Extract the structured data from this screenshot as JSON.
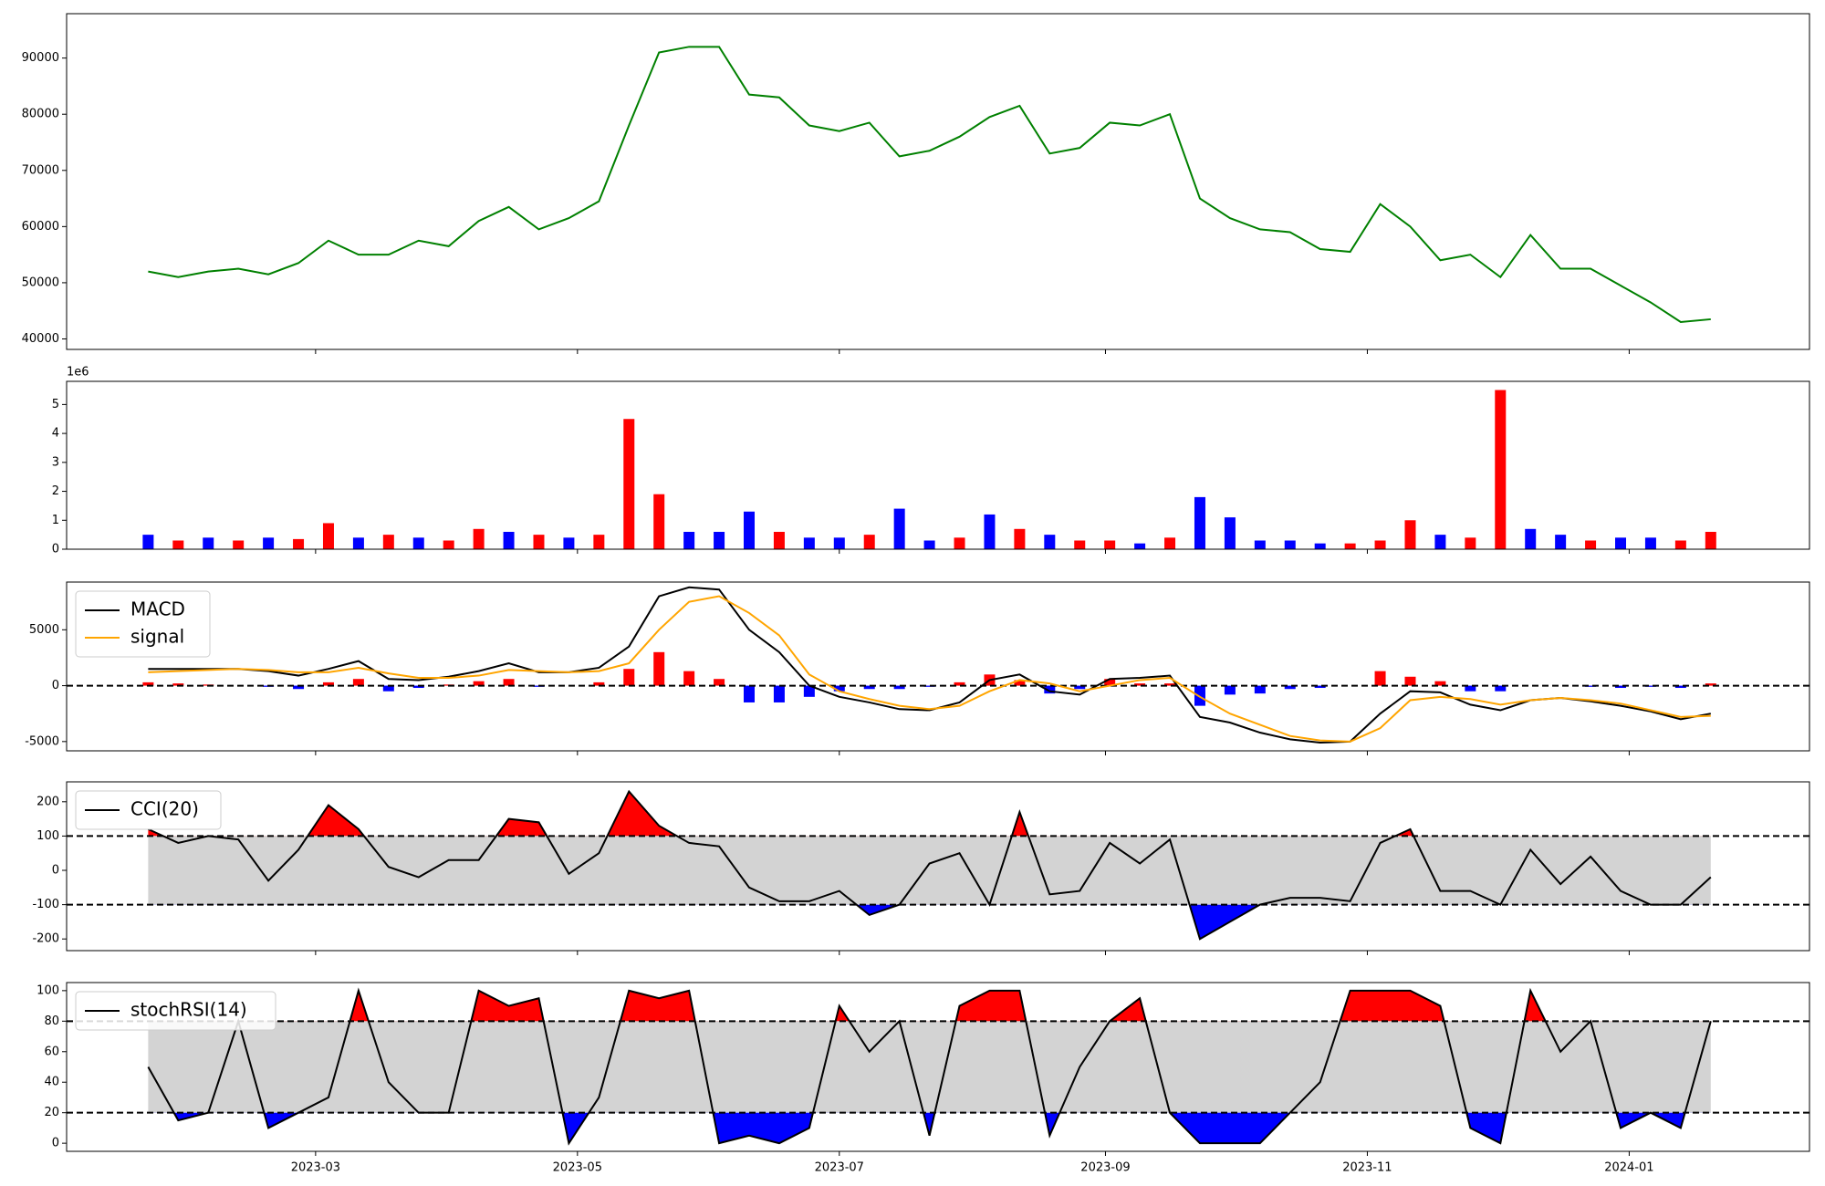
{
  "chart_data": [
    {
      "type": "line",
      "series": [
        {
          "name": null,
          "color": "#008000",
          "values": [
            52000,
            51000,
            52000,
            52500,
            51500,
            53500,
            57500,
            55000,
            55000,
            57500,
            56500,
            61000,
            63500,
            59500,
            61500,
            64500,
            78000,
            91000,
            92000,
            92000,
            83500,
            83000,
            78000,
            77000,
            78500,
            72500,
            73500,
            76000,
            79500,
            81500,
            73000,
            74000,
            78500,
            78000,
            80000,
            65000,
            61500,
            59500,
            59000,
            56000,
            55500,
            64000,
            60000,
            54000,
            55000,
            51000,
            58500,
            52500,
            52500,
            49500,
            46500,
            43000,
            43500
          ]
        }
      ],
      "x": [
        "2023-01-21",
        "2023-01-28",
        "2023-02-04",
        "2023-02-11",
        "2023-02-18",
        "2023-02-25",
        "2023-03-04",
        "2023-03-11",
        "2023-03-18",
        "2023-03-25",
        "2023-04-01",
        "2023-04-08",
        "2023-04-15",
        "2023-04-22",
        "2023-04-29",
        "2023-05-06",
        "2023-05-13",
        "2023-05-20",
        "2023-05-27",
        "2023-06-03",
        "2023-06-10",
        "2023-06-17",
        "2023-06-24",
        "2023-07-01",
        "2023-07-08",
        "2023-07-15",
        "2023-07-22",
        "2023-07-29",
        "2023-08-05",
        "2023-08-12",
        "2023-08-19",
        "2023-08-26",
        "2023-09-02",
        "2023-09-09",
        "2023-09-16",
        "2023-09-23",
        "2023-09-30",
        "2023-10-07",
        "2023-10-14",
        "2023-10-21",
        "2023-10-28",
        "2023-11-04",
        "2023-11-11",
        "2023-11-18",
        "2023-11-25",
        "2023-12-02",
        "2023-12-09",
        "2023-12-16",
        "2023-12-23",
        "2023-12-30",
        "2024-01-06",
        "2024-01-13",
        "2024-01-20"
      ],
      "xlim": [
        "2023-01-02",
        "2024-02-12"
      ],
      "ylim": [
        38130,
        97900
      ],
      "yticks": [
        40000,
        50000,
        60000,
        70000,
        80000,
        90000
      ]
    },
    {
      "type": "bar",
      "offset_label": "1e6",
      "values": [
        0.5,
        0.3,
        0.4,
        0.3,
        0.4,
        0.35,
        0.9,
        0.4,
        0.5,
        0.4,
        0.3,
        0.7,
        0.6,
        0.5,
        0.4,
        0.5,
        4.5,
        1.9,
        0.6,
        0.6,
        1.3,
        0.6,
        0.4,
        0.4,
        0.5,
        1.4,
        0.3,
        0.4,
        1.2,
        0.7,
        0.5,
        0.3,
        0.3,
        0.2,
        0.4,
        1.8,
        1.1,
        0.3,
        0.3,
        0.2,
        0.2,
        0.3,
        1.0,
        0.5,
        0.4,
        5.5,
        0.7,
        0.5,
        0.3,
        0.4,
        0.4,
        0.3,
        0.6
      ],
      "colors": [
        "#0000ff",
        "#ff0000",
        "#0000ff",
        "#ff0000",
        "#0000ff",
        "#ff0000",
        "#ff0000",
        "#0000ff",
        "#ff0000",
        "#0000ff",
        "#ff0000",
        "#ff0000",
        "#0000ff",
        "#ff0000",
        "#0000ff",
        "#ff0000",
        "#ff0000",
        "#ff0000",
        "#0000ff",
        "#0000ff",
        "#0000ff",
        "#ff0000",
        "#0000ff",
        "#0000ff",
        "#ff0000",
        "#0000ff",
        "#0000ff",
        "#ff0000",
        "#0000ff",
        "#ff0000",
        "#0000ff",
        "#ff0000",
        "#ff0000",
        "#0000ff",
        "#ff0000",
        "#0000ff",
        "#0000ff",
        "#0000ff",
        "#0000ff",
        "#0000ff",
        "#ff0000",
        "#ff0000",
        "#ff0000",
        "#0000ff",
        "#ff0000",
        "#ff0000",
        "#0000ff",
        "#0000ff",
        "#ff0000",
        "#0000ff",
        "#0000ff",
        "#ff0000",
        "#ff0000"
      ],
      "x": [
        "2023-01-21",
        "2023-01-28",
        "2023-02-04",
        "2023-02-11",
        "2023-02-18",
        "2023-02-25",
        "2023-03-04",
        "2023-03-11",
        "2023-03-18",
        "2023-03-25",
        "2023-04-01",
        "2023-04-08",
        "2023-04-15",
        "2023-04-22",
        "2023-04-29",
        "2023-05-06",
        "2023-05-13",
        "2023-05-20",
        "2023-05-27",
        "2023-06-03",
        "2023-06-10",
        "2023-06-17",
        "2023-06-24",
        "2023-07-01",
        "2023-07-08",
        "2023-07-15",
        "2023-07-22",
        "2023-07-29",
        "2023-08-05",
        "2023-08-12",
        "2023-08-19",
        "2023-08-26",
        "2023-09-02",
        "2023-09-09",
        "2023-09-16",
        "2023-09-23",
        "2023-09-30",
        "2023-10-07",
        "2023-10-14",
        "2023-10-21",
        "2023-10-28",
        "2023-11-04",
        "2023-11-11",
        "2023-11-18",
        "2023-11-25",
        "2023-12-02",
        "2023-12-09",
        "2023-12-16",
        "2023-12-23",
        "2023-12-30",
        "2024-01-06",
        "2024-01-13",
        "2024-01-20"
      ],
      "xlim": [
        "2023-01-02",
        "2024-02-12"
      ],
      "ylim": [
        0,
        5.8
      ],
      "yticks": [
        0,
        1,
        2,
        3,
        4,
        5
      ]
    },
    {
      "type": "line",
      "legend": "upper left",
      "hlines": [
        0
      ],
      "series": [
        {
          "name": "MACD",
          "color": "#000000",
          "values": [
            1500,
            1500,
            1500,
            1500,
            1300,
            900,
            1500,
            2200,
            600,
            500,
            800,
            1300,
            2000,
            1200,
            1200,
            1600,
            3500,
            8000,
            8800,
            8600,
            5000,
            3000,
            0,
            -1000,
            -1500,
            -2100,
            -2200,
            -1500,
            500,
            1000,
            -500,
            -800,
            600,
            700,
            900,
            -2800,
            -3300,
            -4200,
            -4800,
            -5100,
            -5000,
            -2500,
            -500,
            -600,
            -1700,
            -2200,
            -1300,
            -1100,
            -1400,
            -1800,
            -2300,
            -3000,
            -2500
          ]
        },
        {
          "name": "signal",
          "color": "#ffa500",
          "values": [
            1200,
            1300,
            1400,
            1500,
            1400,
            1200,
            1200,
            1600,
            1100,
            700,
            700,
            900,
            1400,
            1300,
            1200,
            1300,
            2000,
            5000,
            7500,
            8000,
            6500,
            4500,
            1000,
            -500,
            -1200,
            -1800,
            -2100,
            -1800,
            -500,
            500,
            200,
            -500,
            0,
            500,
            700,
            -1000,
            -2500,
            -3500,
            -4500,
            -4900,
            -5000,
            -3800,
            -1300,
            -1000,
            -1200,
            -1700,
            -1300,
            -1100,
            -1300,
            -1600,
            -2200,
            -2800,
            -2700
          ]
        }
      ],
      "histogram": {
        "positive_color": "#ff0000",
        "negative_color": "#0000ff",
        "values": [
          300,
          200,
          100,
          0,
          -100,
          -300,
          300,
          600,
          -500,
          -200,
          100,
          400,
          600,
          -100,
          0,
          300,
          1500,
          3000,
          1300,
          600,
          -1500,
          -1500,
          -1000,
          -500,
          -300,
          -300,
          -100,
          300,
          1000,
          500,
          -700,
          -300,
          600,
          200,
          200,
          -1800,
          -800,
          -700,
          -300,
          -200,
          0,
          1300,
          800,
          400,
          -500,
          -500,
          0,
          0,
          -100,
          -200,
          -100,
          -200,
          200
        ]
      },
      "x": [
        "2023-01-21",
        "2023-01-28",
        "2023-02-04",
        "2023-02-11",
        "2023-02-18",
        "2023-02-25",
        "2023-03-04",
        "2023-03-11",
        "2023-03-18",
        "2023-03-25",
        "2023-04-01",
        "2023-04-08",
        "2023-04-15",
        "2023-04-22",
        "2023-04-29",
        "2023-05-06",
        "2023-05-13",
        "2023-05-20",
        "2023-05-27",
        "2023-06-03",
        "2023-06-10",
        "2023-06-17",
        "2023-06-24",
        "2023-07-01",
        "2023-07-08",
        "2023-07-15",
        "2023-07-22",
        "2023-07-29",
        "2023-08-05",
        "2023-08-12",
        "2023-08-19",
        "2023-08-26",
        "2023-09-02",
        "2023-09-09",
        "2023-09-16",
        "2023-09-23",
        "2023-09-30",
        "2023-10-07",
        "2023-10-14",
        "2023-10-21",
        "2023-10-28",
        "2023-11-04",
        "2023-11-11",
        "2023-11-18",
        "2023-11-25",
        "2023-12-02",
        "2023-12-09",
        "2023-12-16",
        "2023-12-23",
        "2023-12-30",
        "2024-01-06",
        "2024-01-13",
        "2024-01-20"
      ],
      "xlim": [
        "2023-01-02",
        "2024-02-12"
      ],
      "ylim": [
        -5830,
        9270
      ],
      "yticks": [
        -5000,
        0,
        5000
      ]
    },
    {
      "type": "line",
      "legend": "upper left",
      "hlines": [
        -100,
        100
      ],
      "band_color": "#d3d3d3",
      "above_color": "#ff0000",
      "below_color": "#0000ff",
      "series": [
        {
          "name": "CCI(20)",
          "color": "#000000",
          "values": [
            120,
            80,
            100,
            90,
            -30,
            60,
            190,
            120,
            10,
            -20,
            30,
            30,
            150,
            140,
            -10,
            50,
            230,
            130,
            80,
            70,
            -50,
            -90,
            -90,
            -60,
            -130,
            -100,
            20,
            50,
            -100,
            170,
            -70,
            -60,
            80,
            20,
            90,
            -200,
            -150,
            -100,
            -80,
            -80,
            -90,
            80,
            120,
            -60,
            -60,
            -100,
            60,
            -40,
            40,
            -60,
            -100,
            -100,
            -20
          ]
        }
      ],
      "x": [
        "2023-01-21",
        "2023-01-28",
        "2023-02-04",
        "2023-02-11",
        "2023-02-18",
        "2023-02-25",
        "2023-03-04",
        "2023-03-11",
        "2023-03-18",
        "2023-03-25",
        "2023-04-01",
        "2023-04-08",
        "2023-04-15",
        "2023-04-22",
        "2023-04-29",
        "2023-05-06",
        "2023-05-13",
        "2023-05-20",
        "2023-05-27",
        "2023-06-03",
        "2023-06-10",
        "2023-06-17",
        "2023-06-24",
        "2023-07-01",
        "2023-07-08",
        "2023-07-15",
        "2023-07-22",
        "2023-07-29",
        "2023-08-05",
        "2023-08-12",
        "2023-08-19",
        "2023-08-26",
        "2023-09-02",
        "2023-09-09",
        "2023-09-16",
        "2023-09-23",
        "2023-09-30",
        "2023-10-07",
        "2023-10-14",
        "2023-10-21",
        "2023-10-28",
        "2023-11-04",
        "2023-11-11",
        "2023-11-18",
        "2023-11-25",
        "2023-12-02",
        "2023-12-09",
        "2023-12-16",
        "2023-12-23",
        "2023-12-30",
        "2024-01-06",
        "2024-01-13",
        "2024-01-20"
      ],
      "xlim": [
        "2023-01-02",
        "2024-02-12"
      ],
      "ylim": [
        -234,
        258
      ],
      "yticks": [
        -200,
        -100,
        0,
        100,
        200
      ]
    },
    {
      "type": "line",
      "legend": "upper left",
      "hlines": [
        20,
        80
      ],
      "band_color": "#d3d3d3",
      "above_color": "#ff0000",
      "below_color": "#0000ff",
      "series": [
        {
          "name": "stochRSI(14)",
          "color": "#000000",
          "values": [
            50,
            15,
            20,
            80,
            10,
            20,
            30,
            100,
            40,
            20,
            20,
            100,
            90,
            95,
            0,
            30,
            100,
            95,
            100,
            0,
            5,
            0,
            10,
            90,
            60,
            80,
            5,
            90,
            100,
            100,
            5,
            50,
            80,
            95,
            20,
            0,
            0,
            0,
            20,
            40,
            100,
            100,
            100,
            90,
            10,
            0,
            100,
            60,
            80,
            10,
            20,
            10,
            80
          ]
        }
      ],
      "x": [
        "2023-01-21",
        "2023-01-28",
        "2023-02-04",
        "2023-02-11",
        "2023-02-18",
        "2023-02-25",
        "2023-03-04",
        "2023-03-11",
        "2023-03-18",
        "2023-03-25",
        "2023-04-01",
        "2023-04-08",
        "2023-04-15",
        "2023-04-22",
        "2023-04-29",
        "2023-05-06",
        "2023-05-13",
        "2023-05-20",
        "2023-05-27",
        "2023-06-03",
        "2023-06-10",
        "2023-06-17",
        "2023-06-24",
        "2023-07-01",
        "2023-07-08",
        "2023-07-15",
        "2023-07-22",
        "2023-07-29",
        "2023-08-05",
        "2023-08-12",
        "2023-08-19",
        "2023-08-26",
        "2023-09-02",
        "2023-09-09",
        "2023-09-16",
        "2023-09-23",
        "2023-09-30",
        "2023-10-07",
        "2023-10-14",
        "2023-10-21",
        "2023-10-28",
        "2023-11-04",
        "2023-11-11",
        "2023-11-18",
        "2023-11-25",
        "2023-12-02",
        "2023-12-09",
        "2023-12-16",
        "2023-12-23",
        "2023-12-30",
        "2024-01-06",
        "2024-01-13",
        "2024-01-20"
      ],
      "xlim": [
        "2023-01-02",
        "2024-02-12"
      ],
      "ylim": [
        -5.3,
        105.3
      ],
      "yticks": [
        0,
        20,
        40,
        60,
        80,
        100
      ],
      "xticks": [
        "2023-03",
        "2023-05",
        "2023-07",
        "2023-09",
        "2023-11",
        "2024-01"
      ]
    }
  ]
}
